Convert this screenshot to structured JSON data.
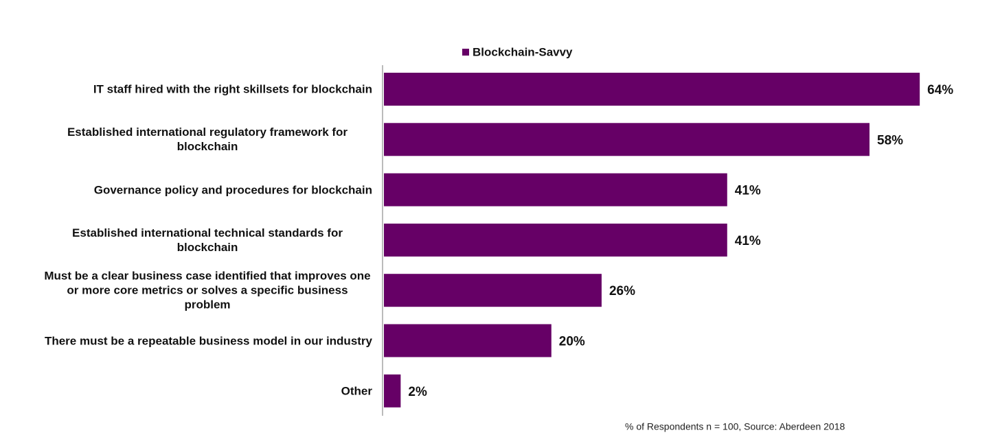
{
  "chart_data": {
    "type": "hbar",
    "categories": [
      "IT staff hired with the right skillsets for blockchain",
      "Established international regulatory framework for blockchain",
      "Governance policy and procedures for blockchain",
      "Established international technical standards for blockchain",
      "Must be a clear business case identified that improves one or more core metrics or solves a specific business problem",
      "There must be a repeatable business model in our industry",
      "Other"
    ],
    "series": [
      {
        "name": "Blockchain-Savvy",
        "color": "#660066",
        "values": [
          64,
          58,
          41,
          41,
          26,
          20,
          2
        ],
        "value_labels": [
          "64%",
          "58%",
          "41%",
          "41%",
          "26%",
          "20%",
          "2%"
        ]
      }
    ],
    "xlim": [
      0,
      70
    ],
    "note": "% of Respondents n = 100, Source: Aberdeen 2018"
  }
}
